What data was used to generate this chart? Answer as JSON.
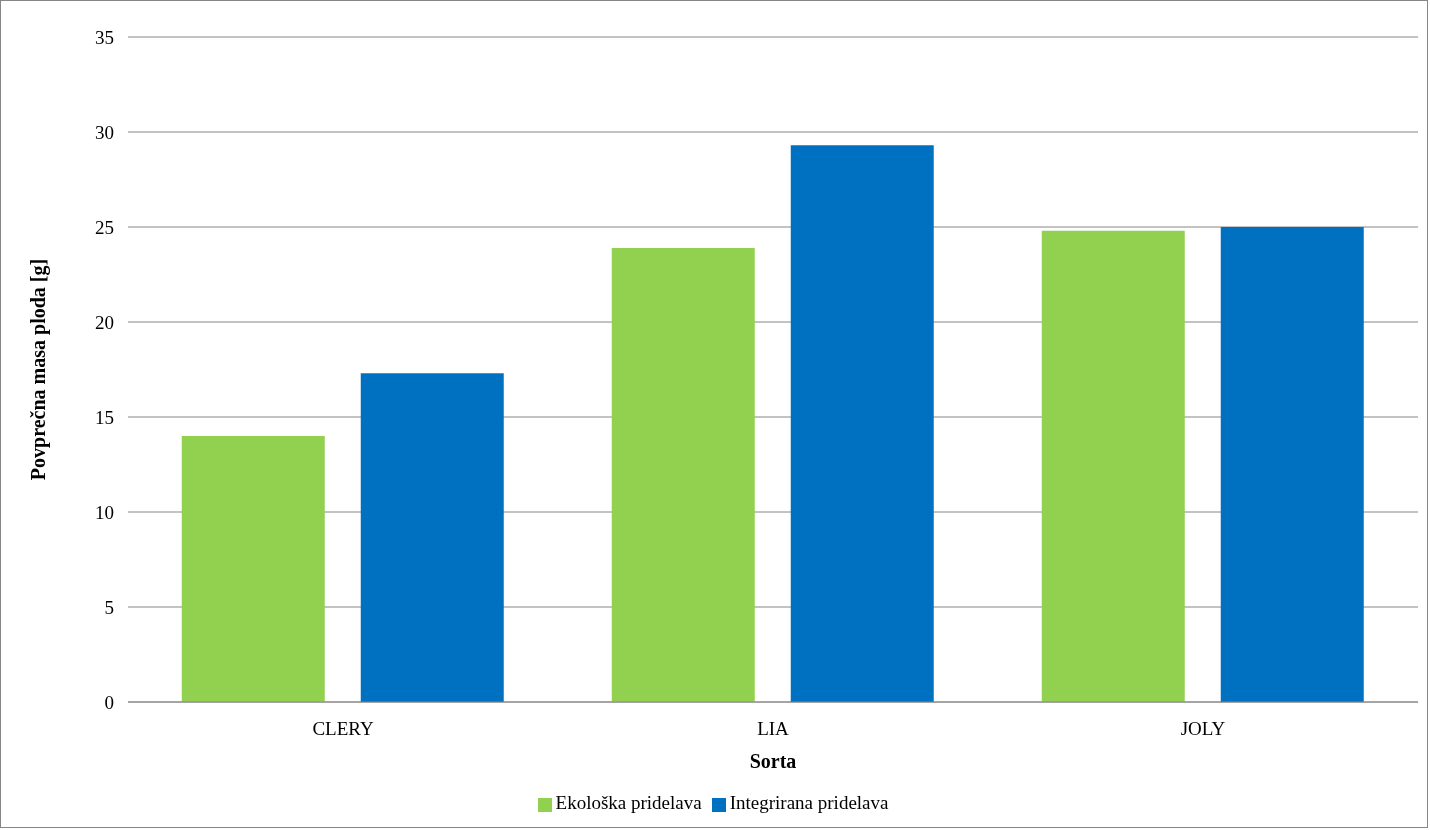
{
  "chart_data": {
    "type": "bar",
    "xlabel": "Sorta",
    "ylabel": "Povprečna masa ploda [g]",
    "categories": [
      "CLERY",
      "LIA",
      "JOLY"
    ],
    "series": [
      {
        "name": "Ekološka pridelava",
        "color": "#92d050",
        "values": [
          14.0,
          23.9,
          24.8
        ]
      },
      {
        "name": "Integrirana pridelava",
        "color": "#0070c0",
        "values": [
          17.3,
          29.3,
          25.0
        ]
      }
    ],
    "ylim": [
      0,
      35
    ],
    "yticks": [
      0,
      5,
      10,
      15,
      20,
      25,
      30,
      35
    ],
    "grid": "y",
    "legend": "bottom"
  }
}
